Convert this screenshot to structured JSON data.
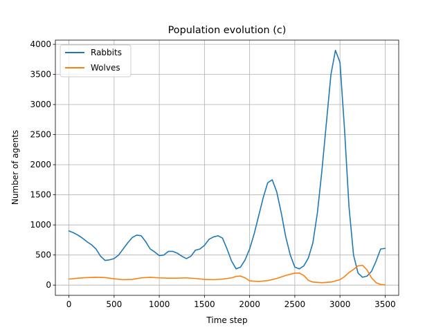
{
  "chart_data": {
    "type": "line",
    "title": "Population evolution (c)",
    "xlabel": "Time step",
    "ylabel": "Number of agents",
    "xlim": [
      -150,
      3650
    ],
    "ylim": [
      -170,
      4070
    ],
    "xticks": [
      0,
      500,
      1000,
      1500,
      2000,
      2500,
      3000,
      3500
    ],
    "yticks": [
      0,
      500,
      1000,
      1500,
      2000,
      2500,
      3000,
      3500,
      4000
    ],
    "grid": true,
    "legend_position": "top-left",
    "series": [
      {
        "name": "Rabbits",
        "color": "#1f77b4",
        "x": [
          0,
          50,
          100,
          150,
          200,
          250,
          300,
          350,
          400,
          450,
          500,
          550,
          600,
          650,
          700,
          750,
          800,
          850,
          900,
          950,
          1000,
          1050,
          1100,
          1150,
          1200,
          1250,
          1300,
          1350,
          1400,
          1450,
          1500,
          1550,
          1600,
          1650,
          1700,
          1750,
          1800,
          1850,
          1900,
          1950,
          2000,
          2050,
          2100,
          2150,
          2200,
          2250,
          2300,
          2350,
          2400,
          2450,
          2500,
          2550,
          2600,
          2650,
          2700,
          2750,
          2800,
          2850,
          2900,
          2950,
          3000,
          3050,
          3100,
          3150,
          3200,
          3250,
          3300,
          3350,
          3400,
          3450,
          3500
        ],
        "values": [
          900,
          870,
          830,
          780,
          720,
          670,
          600,
          480,
          410,
          420,
          440,
          500,
          600,
          700,
          790,
          830,
          820,
          720,
          600,
          550,
          490,
          500,
          560,
          560,
          530,
          480,
          440,
          480,
          580,
          600,
          660,
          760,
          800,
          820,
          780,
          600,
          400,
          270,
          300,
          420,
          600,
          850,
          1150,
          1450,
          1700,
          1750,
          1550,
          1200,
          800,
          500,
          300,
          270,
          320,
          450,
          700,
          1200,
          1900,
          2700,
          3500,
          3900,
          3700,
          2600,
          1300,
          500,
          200,
          130,
          150,
          230,
          400,
          600,
          610
        ]
      },
      {
        "name": "Wolves",
        "color": "#ff7f0e",
        "x": [
          0,
          100,
          200,
          300,
          400,
          500,
          600,
          700,
          800,
          900,
          1000,
          1100,
          1200,
          1300,
          1400,
          1500,
          1600,
          1700,
          1800,
          1850,
          1900,
          1950,
          2000,
          2100,
          2200,
          2300,
          2400,
          2500,
          2550,
          2600,
          2650,
          2700,
          2800,
          2900,
          3000,
          3050,
          3100,
          3150,
          3200,
          3250,
          3300,
          3350,
          3400,
          3450,
          3500
        ],
        "values": [
          100,
          115,
          125,
          130,
          125,
          105,
          90,
          95,
          120,
          130,
          120,
          115,
          115,
          120,
          110,
          95,
          90,
          100,
          120,
          145,
          150,
          120,
          70,
          60,
          75,
          110,
          160,
          200,
          200,
          160,
          80,
          50,
          40,
          50,
          90,
          140,
          210,
          260,
          320,
          330,
          250,
          120,
          40,
          10,
          5
        ]
      }
    ]
  }
}
